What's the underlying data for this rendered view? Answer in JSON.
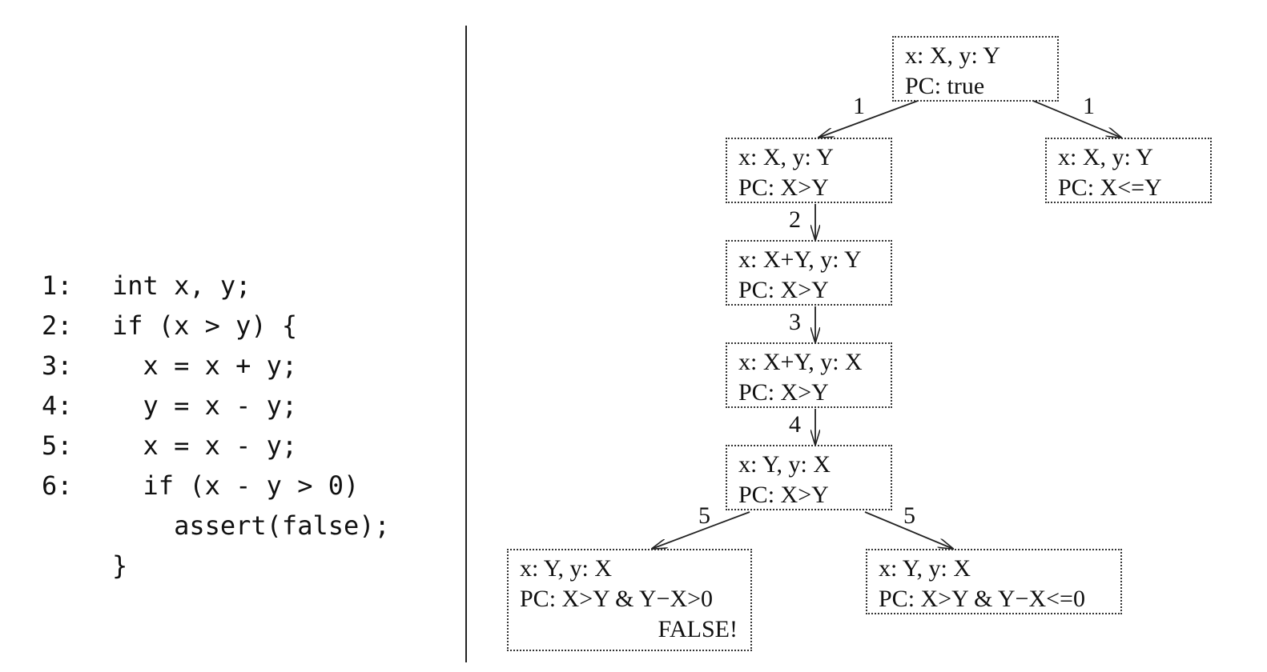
{
  "code": {
    "lines": [
      {
        "num": "",
        "text": "int x, y;"
      },
      {
        "num": "1:",
        "text": "if (x > y) {"
      },
      {
        "num": "2:",
        "text": "  x = x + y;"
      },
      {
        "num": "3:",
        "text": "  y = x - y;"
      },
      {
        "num": "4:",
        "text": "  x = x - y;"
      },
      {
        "num": "5:",
        "text": "  if (x - y > 0)"
      },
      {
        "num": "6:",
        "text": "    assert(false);"
      },
      {
        "num": "",
        "text": "}"
      }
    ]
  },
  "tree": {
    "nodes": {
      "root": {
        "state": "x: X, y: Y",
        "pc": "PC: true"
      },
      "true_branch": {
        "state": "x: X, y: Y",
        "pc": "PC: X>Y"
      },
      "false_branch": {
        "state": "x: X, y: Y",
        "pc": "PC: X<=Y"
      },
      "after_2": {
        "state": "x: X+Y, y: Y",
        "pc": "PC: X>Y"
      },
      "after_3": {
        "state": "x: X+Y, y: X",
        "pc": "PC: X>Y"
      },
      "after_4": {
        "state": "x: Y, y: X",
        "pc": "PC: X>Y"
      },
      "leaf_fail": {
        "state": "x: Y, y: X",
        "pc": "PC: X>Y & Y−X>0",
        "flag": "FALSE!"
      },
      "leaf_ok": {
        "state": "x: Y, y: X",
        "pc": "PC: X>Y & Y−X<=0"
      }
    },
    "edges": {
      "root_to_true": "1",
      "root_to_false": "1",
      "true_to_2": "2",
      "two_to_3": "3",
      "three_to_4": "4",
      "four_to_fail": "5",
      "four_to_ok": "5"
    }
  }
}
